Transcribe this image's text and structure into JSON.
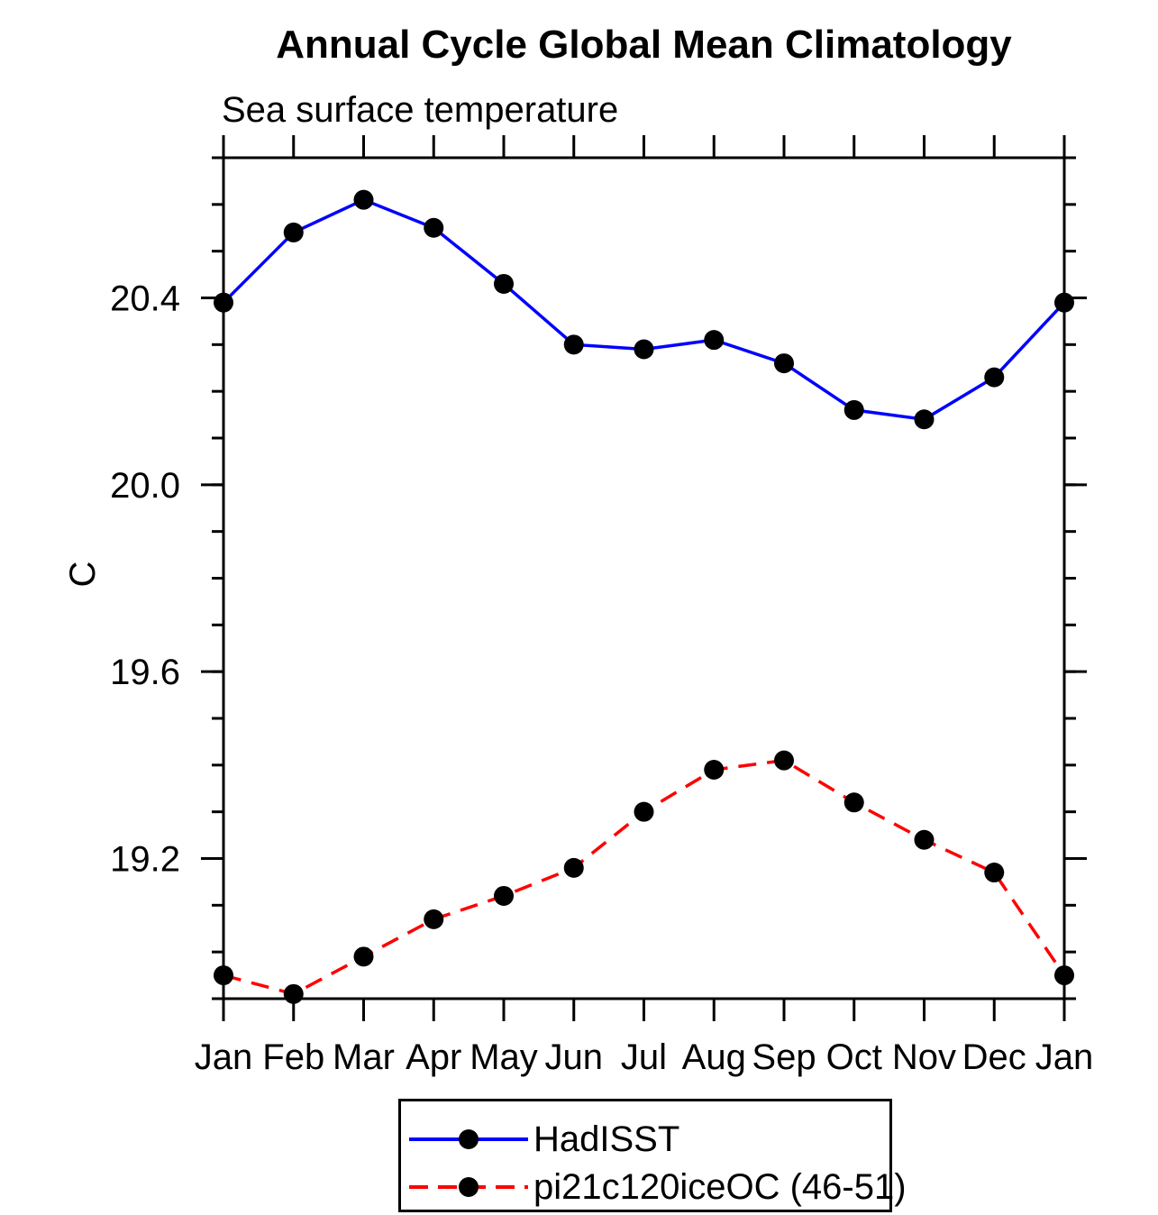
{
  "chart_data": {
    "type": "line",
    "title": "Annual Cycle Global Mean Climatology",
    "subtitle": "Sea surface temperature",
    "xlabel": "",
    "ylabel": "C",
    "categories": [
      "Jan",
      "Feb",
      "Mar",
      "Apr",
      "May",
      "Jun",
      "Jul",
      "Aug",
      "Sep",
      "Oct",
      "Nov",
      "Dec",
      "Jan"
    ],
    "ylim": [
      18.9,
      20.7
    ],
    "y_major_ticks": [
      19.2,
      19.6,
      20.0,
      20.4
    ],
    "y_tick_labels": [
      "19.2",
      "19.6",
      "20.0",
      "20.4"
    ],
    "y_minor_step": 0.1,
    "grid": false,
    "legend_position": "bottom-center",
    "axis_color": "#000000",
    "series": [
      {
        "name": "HadISST",
        "color": "#0000ff",
        "line_style": "solid",
        "marker": "circle",
        "marker_color": "#000000",
        "values": [
          20.39,
          20.54,
          20.61,
          20.55,
          20.43,
          20.3,
          20.29,
          20.31,
          20.26,
          20.16,
          20.14,
          20.23,
          20.39
        ]
      },
      {
        "name": "pi21c120iceOC (46-51)",
        "color": "#ff0000",
        "line_style": "dashed",
        "marker": "circle",
        "marker_color": "#000000",
        "values": [
          18.95,
          18.91,
          18.99,
          19.07,
          19.12,
          19.18,
          19.3,
          19.39,
          19.41,
          19.32,
          19.24,
          19.17,
          18.95
        ]
      }
    ]
  }
}
